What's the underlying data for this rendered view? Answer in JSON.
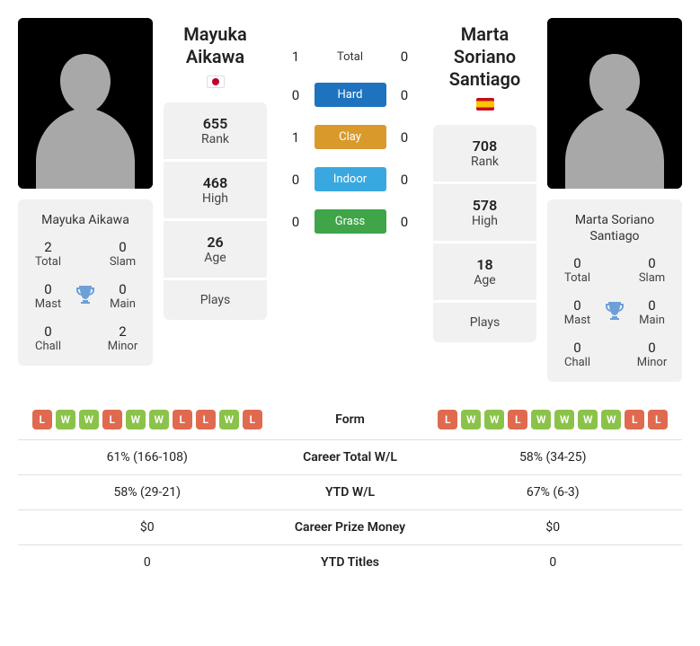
{
  "player1": {
    "name": "Mayuka Aikawa",
    "flag_id": "jp",
    "rank": "655",
    "high": "468",
    "age": "26",
    "plays": "",
    "titles": {
      "total": "2",
      "slam": "0",
      "mast": "0",
      "main": "0",
      "chall": "0",
      "minor": "2"
    },
    "form": [
      "L",
      "W",
      "W",
      "L",
      "W",
      "W",
      "L",
      "L",
      "W",
      "L"
    ],
    "career_wl": "61% (166-108)",
    "ytd_wl": "58% (29-21)",
    "career_prize": "$0",
    "ytd_titles": "0"
  },
  "player2": {
    "name": "Marta Soriano Santiago",
    "flag_id": "es",
    "rank": "708",
    "high": "578",
    "age": "18",
    "plays": "",
    "titles": {
      "total": "0",
      "slam": "0",
      "mast": "0",
      "main": "0",
      "chall": "0",
      "minor": "0"
    },
    "form": [
      "L",
      "W",
      "W",
      "L",
      "W",
      "W",
      "W",
      "W",
      "L",
      "L"
    ],
    "career_wl": "58% (34-25)",
    "ytd_wl": "67% (6-3)",
    "career_prize": "$0",
    "ytd_titles": "0"
  },
  "h2h": {
    "total": {
      "p1": "1",
      "p2": "0"
    },
    "hard": {
      "p1": "0",
      "p2": "0"
    },
    "clay": {
      "p1": "1",
      "p2": "0"
    },
    "indoor": {
      "p1": "0",
      "p2": "0"
    },
    "grass": {
      "p1": "0",
      "p2": "0"
    }
  },
  "labels": {
    "rank": "Rank",
    "high": "High",
    "age": "Age",
    "plays": "Plays",
    "total": "Total",
    "slam": "Slam",
    "mast": "Mast",
    "main": "Main",
    "chall": "Chall",
    "minor": "Minor",
    "surface_total": "Total",
    "hard": "Hard",
    "clay": "Clay",
    "indoor": "Indoor",
    "grass": "Grass",
    "form": "Form",
    "career_wl": "Career Total W/L",
    "ytd_wl": "YTD W/L",
    "career_prize": "Career Prize Money",
    "ytd_titles": "YTD Titles"
  },
  "colors": {
    "card_bg": "#f1f1f1",
    "hard": "#1e73be",
    "clay": "#d99a2b",
    "indoor": "#3aa8e0",
    "grass": "#3fa548",
    "win": "#8bc34a",
    "loss": "#e06a4f",
    "trophy": "#6ea0d8",
    "flag_jp": "#bc002d",
    "flag_es_top": "#c60b1e",
    "flag_es_mid": "#ffc400"
  }
}
